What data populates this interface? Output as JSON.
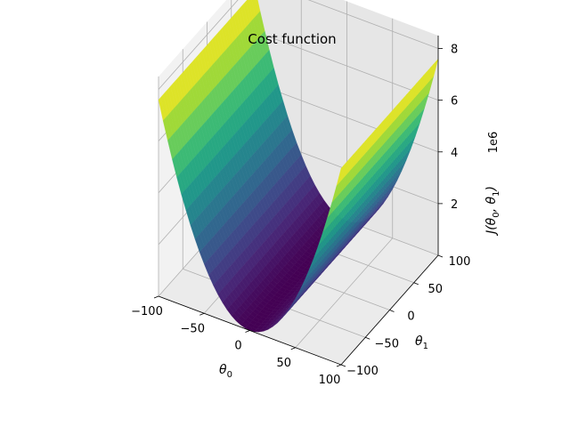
{
  "chart_data": {
    "type": "surface3d",
    "title": "Cost function",
    "x": {
      "label_base": "θ",
      "label_sub": "0",
      "range": [
        -100,
        100
      ],
      "ticks": [
        -100,
        -50,
        0,
        50,
        100
      ]
    },
    "y": {
      "label_base": "θ",
      "label_sub": "1",
      "range": [
        -100,
        100
      ],
      "ticks": [
        -100,
        -50,
        0,
        50,
        100
      ]
    },
    "z": {
      "label_text": "J(θ",
      "label_sub0": "0",
      "label_mid": ", θ",
      "label_sub1": "1",
      "label_end": ")",
      "multiplier": "1e6",
      "ticks": [
        2,
        4,
        6,
        8
      ],
      "range": [
        0,
        8.5
      ]
    },
    "surface": {
      "description_formula": "J ≈ a·θ0² + c",
      "a": 760,
      "c": 0,
      "grid_n": 41,
      "corner_values_e6": {
        "theta0_min": 7.6,
        "theta0_max": 7.6,
        "center": 0.0
      }
    },
    "colormap": "viridis",
    "colormap_stops": [
      "#440154",
      "#482878",
      "#3e4989",
      "#31688e",
      "#26828e",
      "#1f9e89",
      "#35b779",
      "#6ece58",
      "#b5de2b",
      "#fde725"
    ],
    "grid": true,
    "pane_colors": {
      "x": "#f2f2f2",
      "y": "#e6e6e6",
      "z": "#ebebeb"
    }
  }
}
